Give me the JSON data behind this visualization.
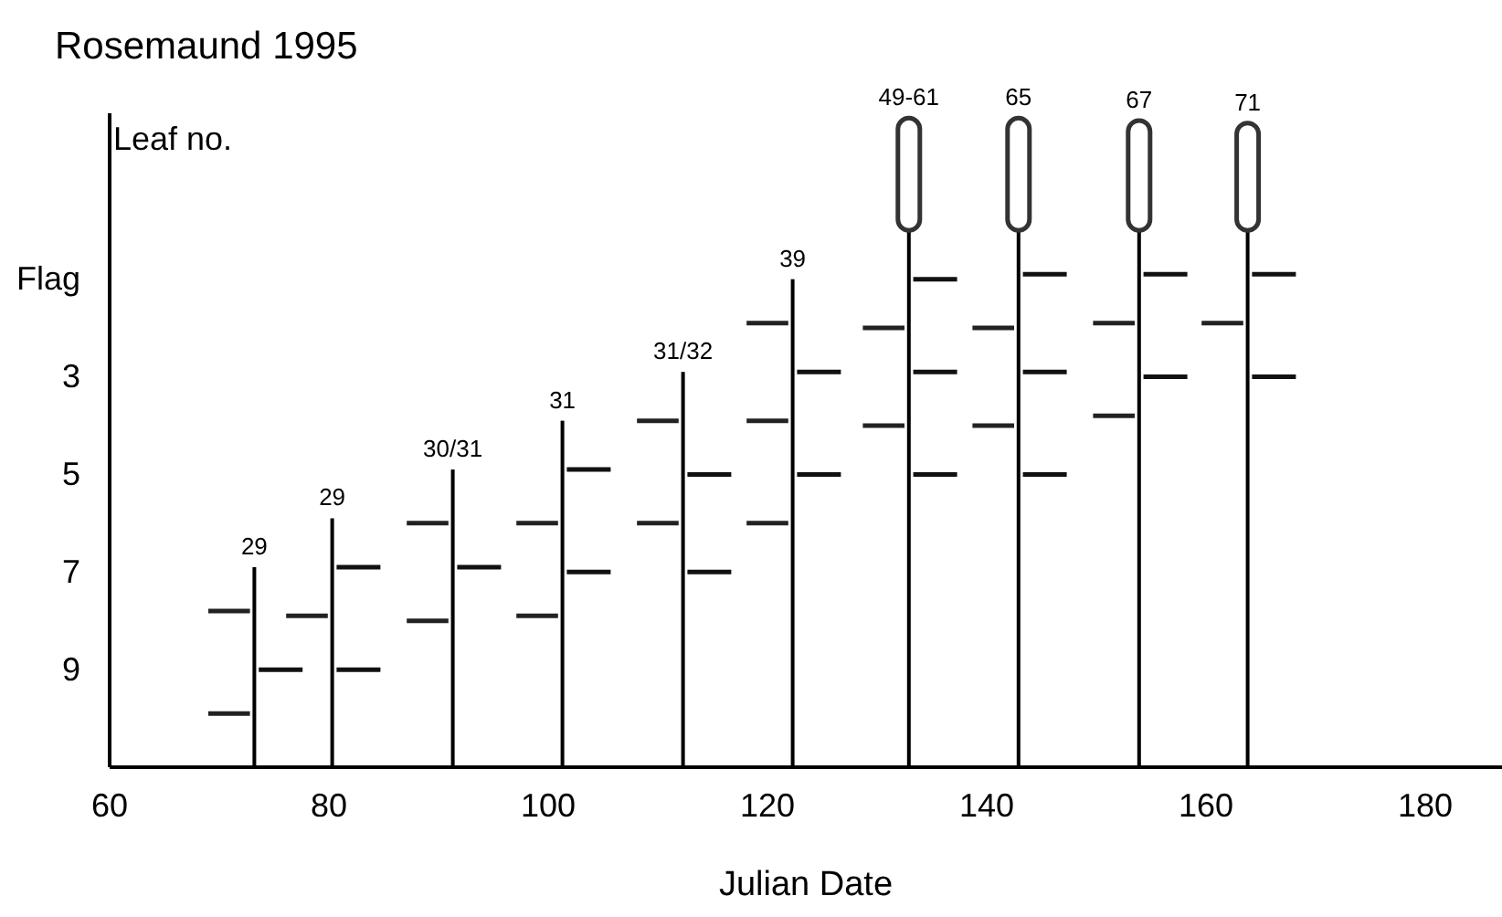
{
  "chart_data": {
    "type": "bar",
    "title": "Rosemaund 1995",
    "xlabel": "Julian Date",
    "ylabel": "Leaf no.",
    "xlim": [
      60,
      187
    ],
    "xticks": [
      60,
      80,
      100,
      120,
      140,
      160,
      180
    ],
    "ylim": [
      11,
      -2.4
    ],
    "yticks": [
      {
        "value": 1,
        "label": "Flag"
      },
      3,
      5,
      7,
      9
    ],
    "grid": false,
    "series": [
      {
        "color": "#000000",
        "x": [
          73.2,
          80.3,
          91.3,
          101.3,
          112.3,
          122.3,
          132.9,
          142.9,
          153.9,
          163.8
        ],
        "base": [
          11,
          11,
          11,
          11,
          11,
          11,
          11,
          11,
          11,
          11
        ],
        "values": [
          -4.1,
          -5.1,
          -6.1,
          -7.1,
          -8.1,
          -10,
          -11,
          -11,
          -11,
          -11
        ]
      },
      {
        "type": "bar",
        "color": "#333333",
        "x": [
          132.9,
          142.9,
          153.9,
          163.8
        ],
        "base": [
          0,
          0,
          0,
          0
        ],
        "values": [
          -2.3,
          -2.3,
          -2.25,
          -2.2
        ]
      },
      {
        "type": "line",
        "color": "#222222",
        "x": [
          69.0,
          72.8
        ],
        "values": [
          7.8,
          7.8
        ]
      },
      {
        "type": "line",
        "color": "#222222",
        "x": [
          69.0,
          72.8
        ],
        "values": [
          9.9,
          9.9
        ]
      },
      {
        "type": "line",
        "color": "#222222",
        "x": [
          76.1,
          79.9
        ],
        "values": [
          7.9,
          7.9
        ]
      },
      {
        "type": "line",
        "color": "#222222",
        "x": [
          87.1,
          90.9
        ],
        "values": [
          6.0,
          6.0
        ]
      },
      {
        "type": "line",
        "color": "#222222",
        "x": [
          87.1,
          90.9
        ],
        "values": [
          8.0,
          8.0
        ]
      },
      {
        "type": "line",
        "color": "#222222",
        "x": [
          97.1,
          100.9
        ],
        "values": [
          6.0,
          6.0
        ]
      },
      {
        "type": "line",
        "color": "#222222",
        "x": [
          97.1,
          100.9
        ],
        "values": [
          7.9,
          7.9
        ]
      },
      {
        "type": "line",
        "color": "#222222",
        "x": [
          108.1,
          111.9
        ],
        "values": [
          3.9,
          3.9
        ]
      },
      {
        "type": "line",
        "color": "#222222",
        "x": [
          108.1,
          111.9
        ],
        "values": [
          6.0,
          6.0
        ]
      },
      {
        "type": "line",
        "color": "#222222",
        "x": [
          118.1,
          121.9
        ],
        "values": [
          1.9,
          1.9
        ]
      },
      {
        "type": "line",
        "color": "#222222",
        "x": [
          118.1,
          121.9
        ],
        "values": [
          3.9,
          3.9
        ]
      },
      {
        "type": "line",
        "color": "#222222",
        "x": [
          118.1,
          121.9
        ],
        "values": [
          6.0,
          6.0
        ]
      },
      {
        "type": "line",
        "color": "#222222",
        "x": [
          128.7,
          132.5
        ],
        "values": [
          2.0,
          2.0
        ]
      },
      {
        "type": "line",
        "color": "#222222",
        "x": [
          128.7,
          132.5
        ],
        "values": [
          4.0,
          4.0
        ]
      },
      {
        "type": "line",
        "color": "#222222",
        "x": [
          138.7,
          142.5
        ],
        "values": [
          2.0,
          2.0
        ]
      },
      {
        "type": "line",
        "color": "#222222",
        "x": [
          138.7,
          142.5
        ],
        "values": [
          4.0,
          4.0
        ]
      },
      {
        "type": "line",
        "color": "#222222",
        "x": [
          149.7,
          153.5
        ],
        "values": [
          1.9,
          1.9
        ]
      },
      {
        "type": "line",
        "color": "#222222",
        "x": [
          149.7,
          153.5
        ],
        "values": [
          3.8,
          3.8
        ]
      },
      {
        "type": "line",
        "color": "#222222",
        "x": [
          159.6,
          163.4
        ],
        "values": [
          1.9,
          1.9
        ]
      },
      {
        "type": "line",
        "color": "#111111",
        "x": [
          73.6,
          77.6
        ],
        "values": [
          9.0,
          9.0
        ]
      },
      {
        "type": "line",
        "color": "#111111",
        "x": [
          80.7,
          84.7
        ],
        "values": [
          6.9,
          6.9
        ]
      },
      {
        "type": "line",
        "color": "#111111",
        "x": [
          80.7,
          84.7
        ],
        "values": [
          9.0,
          9.0
        ]
      },
      {
        "type": "line",
        "color": "#111111",
        "x": [
          91.7,
          95.7
        ],
        "values": [
          6.9,
          6.9
        ]
      },
      {
        "type": "line",
        "color": "#111111",
        "x": [
          101.7,
          105.7
        ],
        "values": [
          4.9,
          4.9
        ]
      },
      {
        "type": "line",
        "color": "#111111",
        "x": [
          101.7,
          105.7
        ],
        "values": [
          7.0,
          7.0
        ]
      },
      {
        "type": "line",
        "color": "#111111",
        "x": [
          112.7,
          116.7
        ],
        "values": [
          5.0,
          5.0
        ]
      },
      {
        "type": "line",
        "color": "#111111",
        "x": [
          112.7,
          116.7
        ],
        "values": [
          7.0,
          7.0
        ]
      },
      {
        "type": "line",
        "color": "#111111",
        "x": [
          122.7,
          126.7
        ],
        "values": [
          2.9,
          2.9
        ]
      },
      {
        "type": "line",
        "color": "#111111",
        "x": [
          122.7,
          126.7
        ],
        "values": [
          5.0,
          5.0
        ]
      },
      {
        "type": "line",
        "color": "#111111",
        "x": [
          133.3,
          137.3
        ],
        "values": [
          1.0,
          1.0
        ]
      },
      {
        "type": "line",
        "color": "#111111",
        "x": [
          133.3,
          137.3
        ],
        "values": [
          2.9,
          2.9
        ]
      },
      {
        "type": "line",
        "color": "#111111",
        "x": [
          133.3,
          137.3
        ],
        "values": [
          5.0,
          5.0
        ]
      },
      {
        "type": "line",
        "color": "#111111",
        "x": [
          143.3,
          147.3
        ],
        "values": [
          0.9,
          0.9
        ]
      },
      {
        "type": "line",
        "color": "#111111",
        "x": [
          143.3,
          147.3
        ],
        "values": [
          2.9,
          2.9
        ]
      },
      {
        "type": "line",
        "color": "#111111",
        "x": [
          143.3,
          147.3
        ],
        "values": [
          5.0,
          5.0
        ]
      },
      {
        "type": "line",
        "color": "#111111",
        "x": [
          154.3,
          158.3
        ],
        "values": [
          0.9,
          0.9
        ]
      },
      {
        "type": "line",
        "color": "#111111",
        "x": [
          154.3,
          158.3
        ],
        "values": [
          3.0,
          3.0
        ]
      },
      {
        "type": "line",
        "color": "#111111",
        "x": [
          164.2,
          168.2
        ],
        "values": [
          0.9,
          0.9
        ]
      },
      {
        "type": "line",
        "color": "#111111",
        "x": [
          164.2,
          168.2
        ],
        "values": [
          3.0,
          3.0
        ]
      }
    ],
    "annotations": [
      {
        "text": "29",
        "x": 73.2,
        "y": 6.9
      },
      {
        "text": "29",
        "x": 80.3,
        "y": 5.9
      },
      {
        "text": "30/31",
        "x": 91.3,
        "y": 4.9
      },
      {
        "text": "31",
        "x": 101.3,
        "y": 3.9
      },
      {
        "text": "31/32",
        "x": 112.3,
        "y": 2.9
      },
      {
        "text": "39",
        "x": 122.3,
        "y": 1.0
      },
      {
        "text": "49-61",
        "x": 132.9,
        "y": -2.3
      },
      {
        "text": "65",
        "x": 142.9,
        "y": -2.3
      },
      {
        "text": "67",
        "x": 153.9,
        "y": -2.25
      },
      {
        "text": "71",
        "x": 163.8,
        "y": -2.2
      }
    ]
  }
}
